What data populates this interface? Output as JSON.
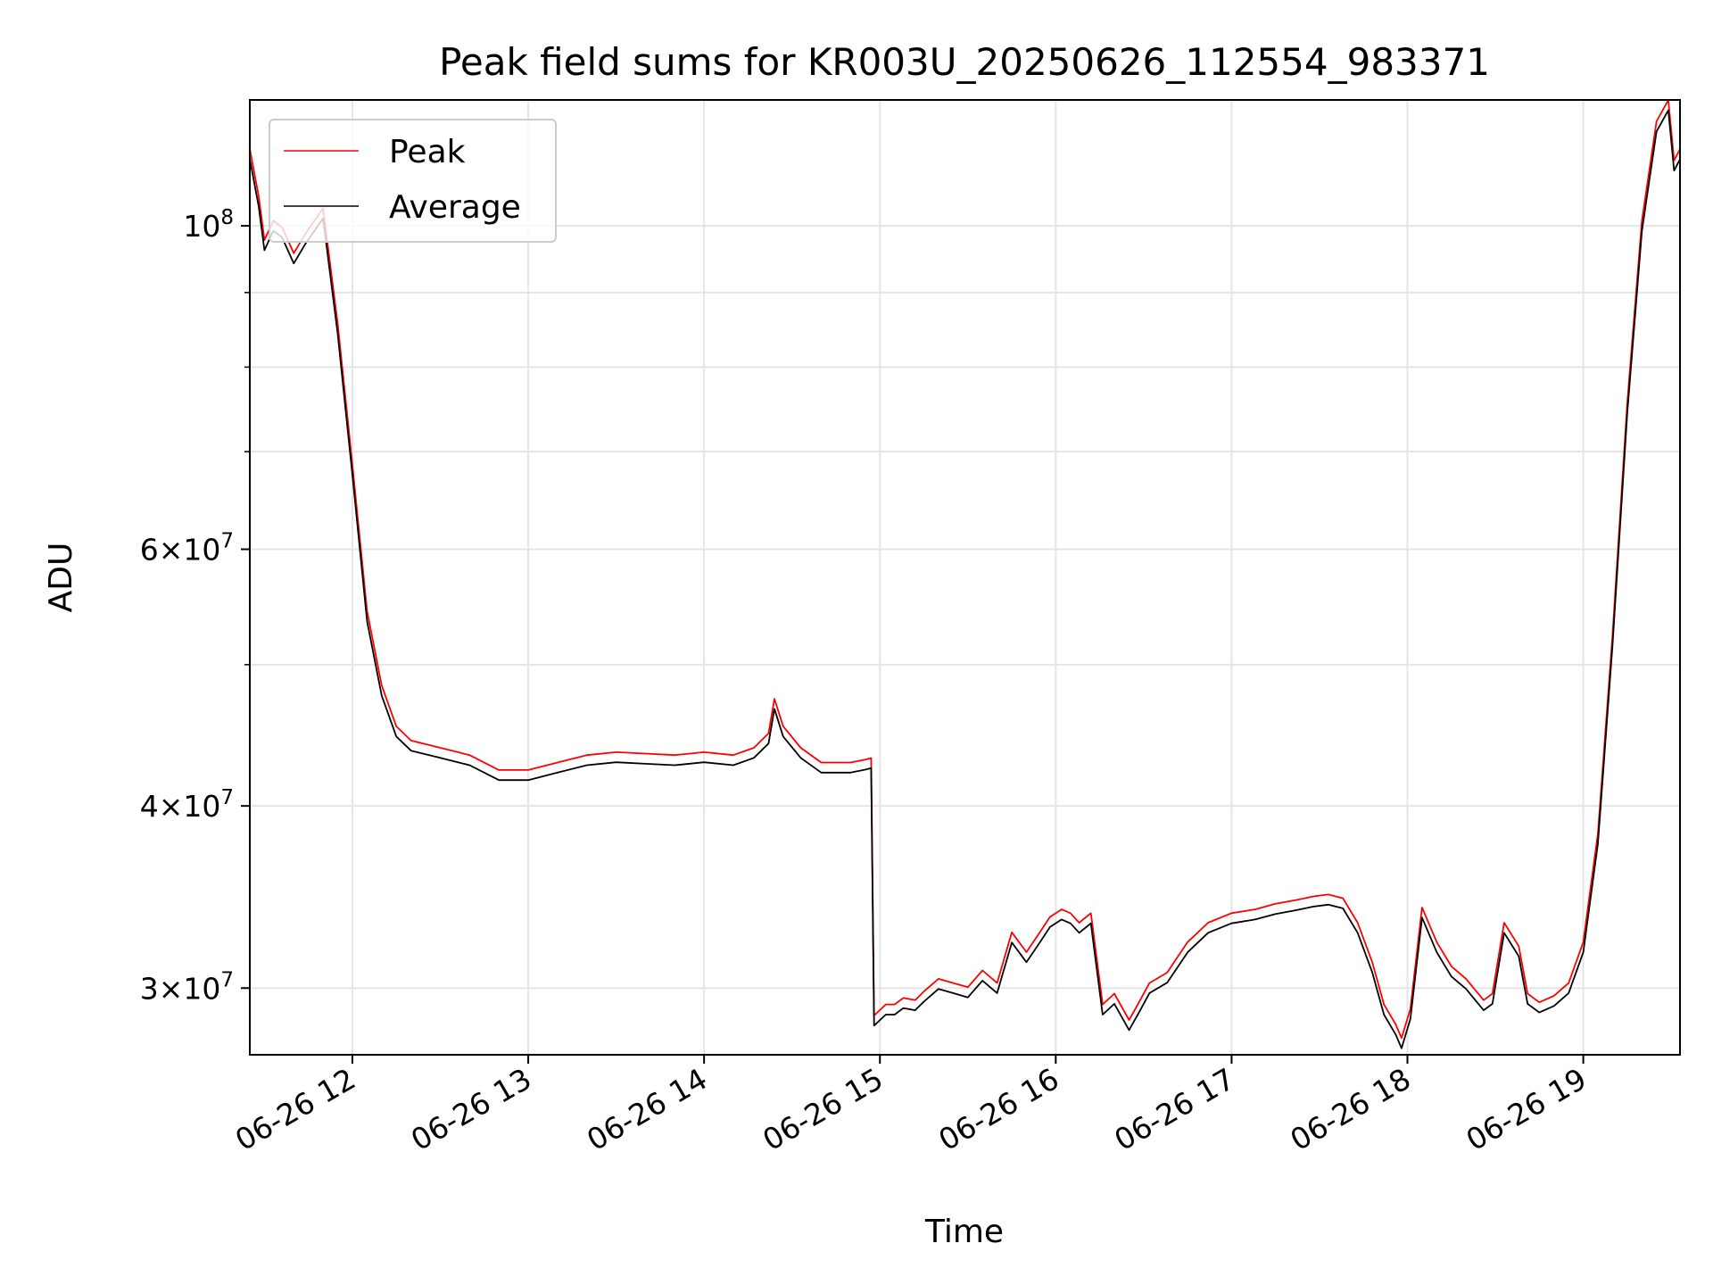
{
  "chart_data": {
    "type": "line",
    "title": "Peak field sums for KR003U_20250626_112554_983371",
    "xlabel": "Time",
    "ylabel": "ADU",
    "yscale": "log",
    "ylim": [
      27000000,
      122000000
    ],
    "xlim": [
      "2025-06-26 11:25",
      "2025-06-26 19:33"
    ],
    "grid": true,
    "legend_position": "upper left",
    "x_ticks": [
      {
        "at": "2025-06-26 12:00",
        "label": "06-26 12"
      },
      {
        "at": "2025-06-26 13:00",
        "label": "06-26 13"
      },
      {
        "at": "2025-06-26 14:00",
        "label": "06-26 14"
      },
      {
        "at": "2025-06-26 15:00",
        "label": "06-26 15"
      },
      {
        "at": "2025-06-26 16:00",
        "label": "06-26 16"
      },
      {
        "at": "2025-06-26 17:00",
        "label": "06-26 17"
      },
      {
        "at": "2025-06-26 18:00",
        "label": "06-26 18"
      },
      {
        "at": "2025-06-26 19:00",
        "label": "06-26 19"
      }
    ],
    "y_ticks": [
      {
        "value": 30000000,
        "mant": "3",
        "exp": "7"
      },
      {
        "value": 40000000,
        "mant": "4",
        "exp": "7"
      },
      {
        "value": 60000000,
        "mant": "6",
        "exp": "7"
      },
      {
        "value": 100000000,
        "mant": "",
        "exp": "8"
      }
    ],
    "y_minor_ticks": [
      50000000,
      70000000,
      80000000,
      90000000
    ],
    "series": [
      {
        "name": "Peak",
        "color": "#ff0000"
      },
      {
        "name": "Average",
        "color": "#000000"
      }
    ],
    "x": [
      "2025-06-26 11:25",
      "2025-06-26 11:28",
      "2025-06-26 11:30",
      "2025-06-26 11:33",
      "2025-06-26 11:36",
      "2025-06-26 11:40",
      "2025-06-26 11:44",
      "2025-06-26 11:50",
      "2025-06-26 11:55",
      "2025-06-26 12:00",
      "2025-06-26 12:05",
      "2025-06-26 12:10",
      "2025-06-26 12:15",
      "2025-06-26 12:20",
      "2025-06-26 12:30",
      "2025-06-26 12:40",
      "2025-06-26 12:50",
      "2025-06-26 13:00",
      "2025-06-26 13:10",
      "2025-06-26 13:20",
      "2025-06-26 13:30",
      "2025-06-26 13:40",
      "2025-06-26 13:50",
      "2025-06-26 14:00",
      "2025-06-26 14:10",
      "2025-06-26 14:17",
      "2025-06-26 14:22",
      "2025-06-26 14:24",
      "2025-06-26 14:27",
      "2025-06-26 14:33",
      "2025-06-26 14:40",
      "2025-06-26 14:50",
      "2025-06-26 14:55",
      "2025-06-26 14:57",
      "2025-06-26 14:58",
      "2025-06-26 15:02",
      "2025-06-26 15:05",
      "2025-06-26 15:08",
      "2025-06-26 15:12",
      "2025-06-26 15:15",
      "2025-06-26 15:20",
      "2025-06-26 15:25",
      "2025-06-26 15:30",
      "2025-06-26 15:35",
      "2025-06-26 15:40",
      "2025-06-26 15:45",
      "2025-06-26 15:50",
      "2025-06-26 15:55",
      "2025-06-26 15:58",
      "2025-06-26 16:02",
      "2025-06-26 16:05",
      "2025-06-26 16:08",
      "2025-06-26 16:12",
      "2025-06-26 16:16",
      "2025-06-26 16:20",
      "2025-06-26 16:25",
      "2025-06-26 16:28",
      "2025-06-26 16:32",
      "2025-06-26 16:38",
      "2025-06-26 16:45",
      "2025-06-26 16:52",
      "2025-06-26 17:00",
      "2025-06-26 17:08",
      "2025-06-26 17:15",
      "2025-06-26 17:22",
      "2025-06-26 17:28",
      "2025-06-26 17:33",
      "2025-06-26 17:38",
      "2025-06-26 17:43",
      "2025-06-26 17:48",
      "2025-06-26 17:52",
      "2025-06-26 17:56",
      "2025-06-26 17:58",
      "2025-06-26 18:01",
      "2025-06-26 18:05",
      "2025-06-26 18:10",
      "2025-06-26 18:15",
      "2025-06-26 18:20",
      "2025-06-26 18:26",
      "2025-06-26 18:29",
      "2025-06-26 18:33",
      "2025-06-26 18:38",
      "2025-06-26 18:41",
      "2025-06-26 18:45",
      "2025-06-26 18:50",
      "2025-06-26 18:55",
      "2025-06-26 19:00",
      "2025-06-26 19:05",
      "2025-06-26 19:10",
      "2025-06-26 19:15",
      "2025-06-26 19:20",
      "2025-06-26 19:25",
      "2025-06-26 19:29",
      "2025-06-26 19:31",
      "2025-06-26 19:33"
    ],
    "values": [
      112000000,
      104000000,
      97000000,
      100000000,
      99000000,
      95000000,
      98000000,
      102000000,
      85000000,
      68000000,
      54000000,
      48000000,
      45000000,
      44000000,
      43500000,
      43000000,
      42000000,
      42000000,
      42500000,
      43000000,
      43200000,
      43100000,
      43000000,
      43200000,
      43000000,
      43500000,
      44500000,
      47000000,
      45000000,
      43500000,
      42500000,
      42500000,
      42700000,
      42800000,
      28500000,
      29000000,
      29000000,
      29300000,
      29200000,
      29600000,
      30200000,
      30000000,
      29800000,
      30600000,
      30000000,
      32500000,
      31500000,
      32600000,
      33300000,
      33700000,
      33500000,
      33000000,
      33500000,
      29000000,
      29500000,
      28300000,
      29000000,
      30000000,
      30500000,
      32000000,
      33000000,
      33500000,
      33700000,
      34000000,
      34200000,
      34400000,
      34500000,
      34300000,
      33000000,
      31000000,
      29000000,
      28100000,
      27500000,
      28800000,
      33800000,
      32000000,
      30800000,
      30200000,
      29200000,
      29500000,
      33000000,
      31800000,
      29500000,
      29100000,
      29400000,
      30000000,
      32000000,
      38000000,
      52000000,
      75000000,
      100000000,
      117000000,
      121000000,
      110000000,
      112000000
    ]
  }
}
